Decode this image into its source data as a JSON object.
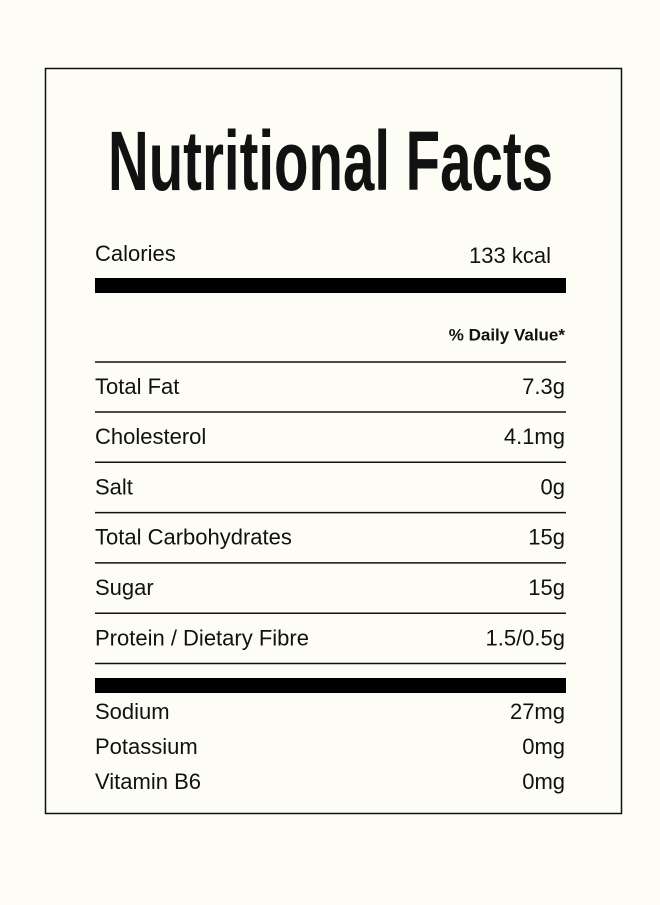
{
  "title": "Nutritional Facts",
  "calories": {
    "label": "Calories",
    "value": "133 kcal"
  },
  "daily_value_header": "% Daily Value*",
  "rows": [
    {
      "label": "Total Fat",
      "value": "7.3g"
    },
    {
      "label": "Cholesterol",
      "value": "4.1mg"
    },
    {
      "label": "Salt",
      "value": "0g"
    },
    {
      "label": "Total Carbohydrates",
      "value": "15g"
    },
    {
      "label": "Sugar",
      "value": "15g"
    },
    {
      "label": "Protein / Dietary Fibre",
      "value": "1.5/0.5g"
    }
  ],
  "minerals": [
    {
      "label": "Sodium",
      "value": "27mg"
    },
    {
      "label": "Potassium",
      "value": "0mg"
    },
    {
      "label": "Vitamin B6",
      "value": "0mg"
    }
  ]
}
